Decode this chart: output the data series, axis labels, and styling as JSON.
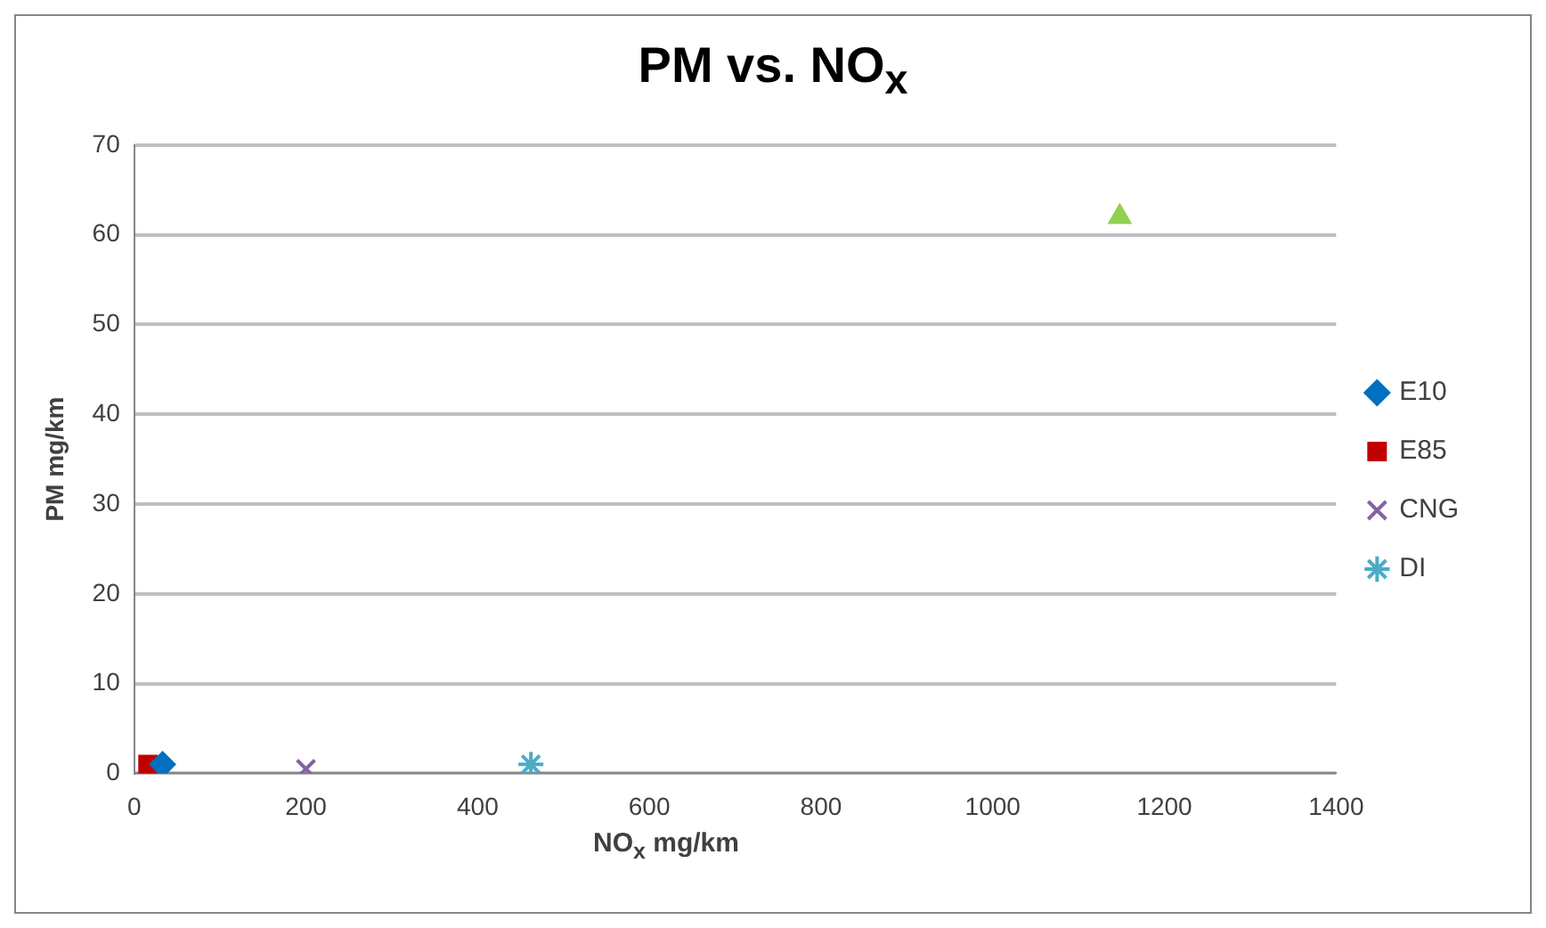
{
  "chart_data": {
    "type": "scatter",
    "title": "PM vs. NO$_{x}$",
    "xlabel": "NO$_{x}$ mg/km",
    "ylabel": "PM mg/km",
    "xlim": [
      0,
      1400
    ],
    "xticks": [
      0,
      200,
      400,
      600,
      800,
      1000,
      1200,
      1400
    ],
    "ylim": [
      0,
      70
    ],
    "yticks": [
      0,
      10,
      20,
      30,
      40,
      50,
      60,
      70
    ],
    "grid": "y",
    "legend": "right",
    "series": [
      {
        "color": "#92d050",
        "marker": "triangle",
        "x": [
          1148
        ],
        "values": [
          62
        ]
      },
      {
        "name": "E10",
        "color": "#0070c0",
        "marker": "diamond",
        "x": [
          33
        ],
        "values": [
          1
        ]
      },
      {
        "name": "E85",
        "color": "#c00000",
        "marker": "square",
        "x": [
          16
        ],
        "values": [
          1
        ]
      },
      {
        "name": "CNG",
        "color": "#8064a2",
        "marker": "cross",
        "x": [
          200
        ],
        "values": [
          0.5
        ]
      },
      {
        "name": "DI",
        "color": "#4bacc6",
        "marker": "cross",
        "x": [
          462
        ],
        "values": [
          1
        ]
      }
    ]
  }
}
